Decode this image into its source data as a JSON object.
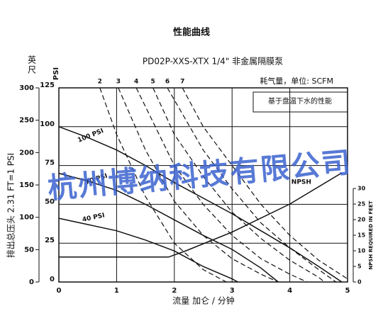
{
  "chart_data": {
    "type": "line",
    "title": "性能曲线",
    "subtitle": "PD02P-XXS-XTX 1/4\" 非金属隔膜泵",
    "air_label": "耗气量，单位: SCFM",
    "note": "基于盘温下水的性能",
    "y_unit_label": "PSI",
    "feet_unit_label": "英尺",
    "y_axis_title": "排出总压头 2.31 FT=1 PSI",
    "x_axis_title": "流量 加仑 / 分钟",
    "y2_axis_title": "NPSH REQUIRED IN FEET",
    "watermark": "杭州博纳科技有限公司",
    "xlim": [
      0,
      5
    ],
    "xticks": [
      0,
      1,
      2,
      3,
      4,
      5
    ],
    "ylim": [
      0,
      125
    ],
    "yticks": [
      0,
      25,
      50,
      75,
      100,
      125
    ],
    "feet_lim": [
      0,
      300
    ],
    "feet_ticks": [
      0,
      50,
      100,
      150,
      200,
      250,
      300
    ],
    "y2lim": [
      0,
      30
    ],
    "y2ticks": [
      0,
      5,
      10,
      15,
      20,
      25,
      30
    ],
    "grid": true,
    "series": [
      {
        "name": "100 PSI",
        "color": "#111111",
        "style": "solid",
        "x": [
          0,
          0.5,
          1,
          1.5,
          2,
          2.5,
          3,
          3.5,
          4,
          4.5,
          4.9
        ],
        "values": [
          100,
          93,
          85,
          75,
          64,
          54,
          44,
          33,
          22,
          10,
          0
        ]
      },
      {
        "name": "70 PSI",
        "color": "#111111",
        "style": "solid",
        "x": [
          0,
          0.5,
          1,
          1.5,
          2,
          2.5,
          3,
          3.5,
          3.8
        ],
        "values": [
          70,
          65,
          59,
          50,
          40,
          30,
          21,
          9,
          0
        ]
      },
      {
        "name": "40 PSI",
        "color": "#111111",
        "style": "solid",
        "x": [
          0,
          0.5,
          1,
          1.5,
          2,
          2.5,
          3,
          3.1
        ],
        "values": [
          41,
          37,
          33,
          27,
          20,
          10,
          2,
          0
        ]
      },
      {
        "name": "NPSH",
        "color": "#111111",
        "style": "solid",
        "axis": "y2",
        "x": [
          0,
          1.9,
          2.2,
          3,
          4,
          4.9
        ],
        "values": [
          8,
          8,
          10,
          16,
          25,
          35
        ]
      },
      {
        "name": "2",
        "color": "#111111",
        "style": "dashed",
        "x": [
          0.71,
          1,
          1.5,
          2,
          2.5,
          2.9
        ],
        "values": [
          125,
          95,
          55,
          25,
          8,
          0
        ]
      },
      {
        "name": "3",
        "color": "#111111",
        "style": "dashed",
        "x": [
          1.03,
          1.5,
          2,
          2.5,
          3,
          3.5,
          3.8
        ],
        "values": [
          125,
          85,
          52,
          30,
          15,
          5,
          0
        ]
      },
      {
        "name": "4",
        "color": "#111111",
        "style": "dashed",
        "x": [
          1.34,
          2,
          2.5,
          3,
          3.5,
          4,
          4.3
        ],
        "values": [
          125,
          75,
          50,
          30,
          15,
          5,
          0
        ]
      },
      {
        "name": "5",
        "color": "#111111",
        "style": "dashed",
        "x": [
          1.63,
          2,
          2.5,
          3,
          3.5,
          4,
          4.5,
          4.6
        ],
        "values": [
          125,
          95,
          68,
          45,
          28,
          14,
          3,
          0
        ]
      },
      {
        "name": "6",
        "color": "#111111",
        "style": "dashed",
        "x": [
          1.88,
          2.5,
          3,
          3.5,
          4,
          4.5,
          4.8
        ],
        "values": [
          125,
          85,
          60,
          38,
          22,
          8,
          0
        ]
      },
      {
        "name": "7",
        "color": "#111111",
        "style": "dashed",
        "x": [
          2.14,
          2.5,
          3,
          3.5,
          4,
          4.5,
          5
        ],
        "values": [
          125,
          100,
          75,
          50,
          30,
          14,
          2
        ]
      }
    ]
  }
}
